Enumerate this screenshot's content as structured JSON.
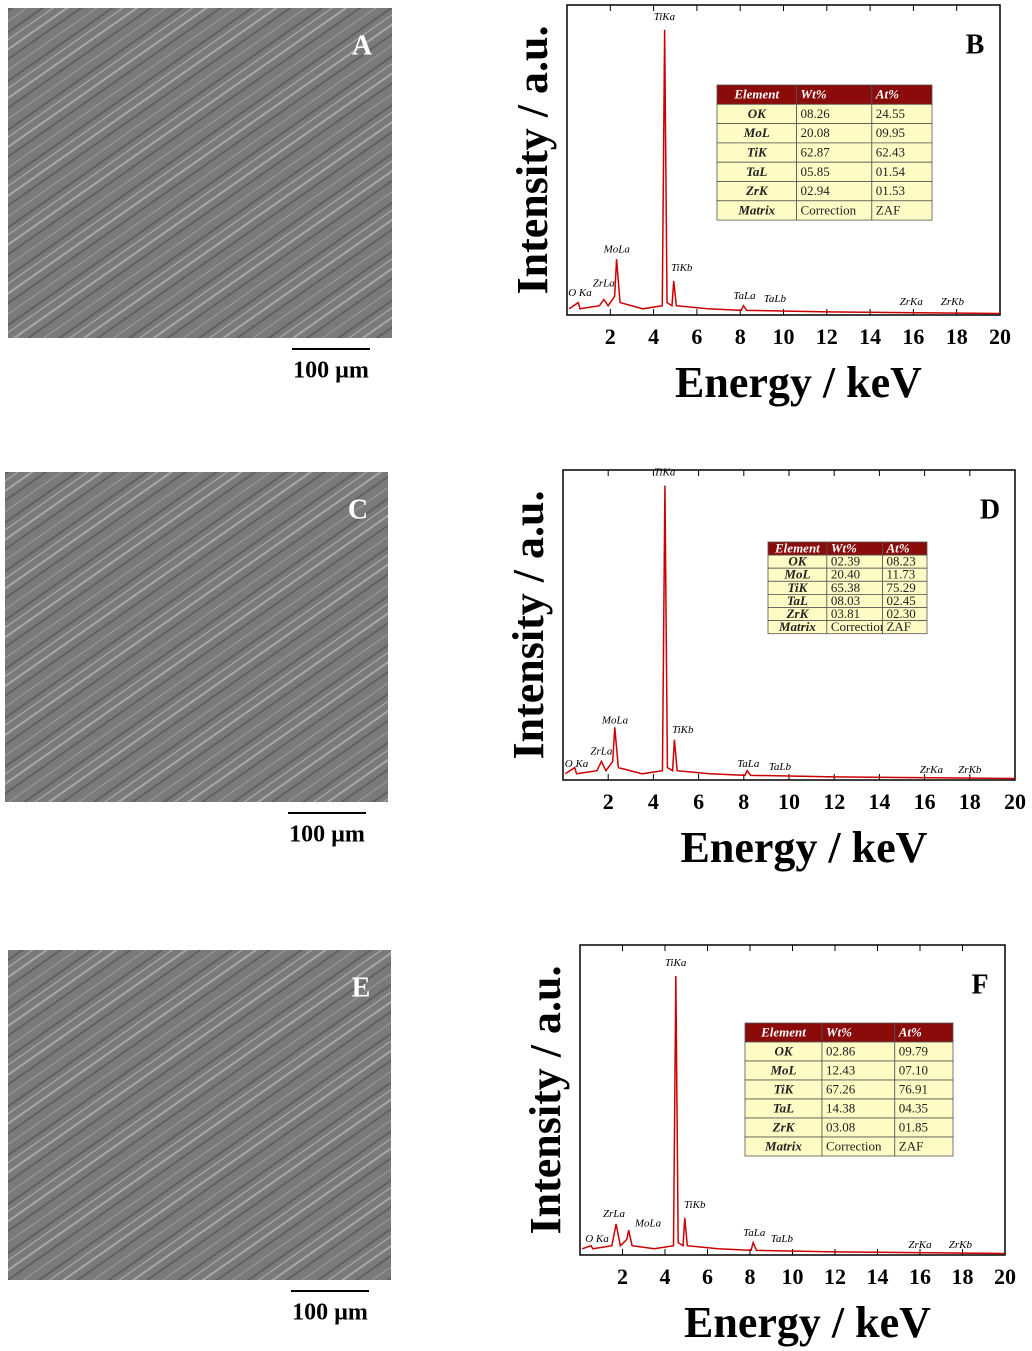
{
  "images": [
    {
      "label": "A",
      "scale_bar": "100 µm"
    },
    {
      "label": "C",
      "scale_bar": "100 µm"
    },
    {
      "label": "E",
      "scale_bar": "100 µm"
    }
  ],
  "chart_data": [
    {
      "type": "line",
      "panel": "B",
      "xlabel": "Energy / keV",
      "ylabel": "Intensity / a.u.",
      "color": "#cc0000",
      "xlim": [
        0,
        20
      ],
      "xticks": [
        2,
        4,
        6,
        8,
        10,
        12,
        14,
        16,
        18,
        20
      ],
      "ylim": [
        0,
        100
      ],
      "x": [
        0.1,
        0.52,
        0.6,
        1.5,
        1.7,
        1.9,
        2.2,
        2.29,
        2.45,
        3.5,
        4.4,
        4.51,
        4.62,
        4.85,
        4.93,
        5.05,
        6.5,
        8.05,
        8.15,
        8.3,
        12,
        20
      ],
      "values": [
        2,
        4,
        2,
        3,
        5,
        3,
        6,
        18,
        4,
        2,
        3,
        92,
        4,
        3,
        11,
        3,
        2,
        1.5,
        3,
        1.5,
        1,
        0.5
      ],
      "annotations": [
        {
          "text": "O Ka",
          "x": 0.6,
          "y": 7
        },
        {
          "text": "ZrLa",
          "x": 1.7,
          "y": 10
        },
        {
          "text": "MoLa",
          "x": 2.3,
          "y": 21
        },
        {
          "text": "TiKa",
          "x": 4.5,
          "y": 96
        },
        {
          "text": "TiKb",
          "x": 5.3,
          "y": 15
        },
        {
          "text": "TaLa",
          "x": 8.2,
          "y": 6
        },
        {
          "text": "TaLb",
          "x": 9.6,
          "y": 5
        },
        {
          "text": "ZrKa",
          "x": 15.9,
          "y": 4
        },
        {
          "text": "ZrKb",
          "x": 17.8,
          "y": 4
        }
      ],
      "table": {
        "header": [
          "Element",
          "Wt%",
          "At%"
        ],
        "rows": [
          [
            "OK",
            "08.26",
            "24.55"
          ],
          [
            "MoL",
            "20.08",
            "09.95"
          ],
          [
            "TiK",
            "62.87",
            "62.43"
          ],
          [
            "TaL",
            "05.85",
            "01.54"
          ],
          [
            "ZrK",
            "02.94",
            "01.53"
          ],
          [
            "Matrix",
            "Correction",
            "ZAF"
          ]
        ]
      }
    },
    {
      "type": "line",
      "panel": "D",
      "xlabel": "Energy / keV",
      "ylabel": "Intensity / a.u.",
      "color": "#cc0000",
      "xlim": [
        0,
        20
      ],
      "xticks": [
        2,
        4,
        6,
        8,
        10,
        12,
        14,
        16,
        18,
        20
      ],
      "ylim": [
        0,
        100
      ],
      "x": [
        0.1,
        0.52,
        0.6,
        1.5,
        1.7,
        1.9,
        2.2,
        2.29,
        2.45,
        3.5,
        4.4,
        4.51,
        4.62,
        4.85,
        4.93,
        5.05,
        6.5,
        8.05,
        8.15,
        8.3,
        12,
        20
      ],
      "values": [
        2,
        4,
        2,
        3,
        6,
        3,
        6,
        17,
        4,
        2,
        3,
        95,
        4,
        3,
        13,
        3,
        2,
        1.5,
        3,
        1.5,
        1,
        0.5
      ],
      "annotations": [
        {
          "text": "O Ka",
          "x": 0.6,
          "y": 5
        },
        {
          "text": "ZrLa",
          "x": 1.7,
          "y": 9
        },
        {
          "text": "MoLa",
          "x": 2.3,
          "y": 19
        },
        {
          "text": "TiKa",
          "x": 4.5,
          "y": 99
        },
        {
          "text": "TiKb",
          "x": 5.3,
          "y": 16
        },
        {
          "text": "TaLa",
          "x": 8.2,
          "y": 5
        },
        {
          "text": "TaLb",
          "x": 9.6,
          "y": 4
        },
        {
          "text": "ZrKa",
          "x": 16.3,
          "y": 3
        },
        {
          "text": "ZrKb",
          "x": 18.0,
          "y": 3
        }
      ],
      "table": {
        "header": [
          "Element",
          "Wt%",
          "At%"
        ],
        "rows": [
          [
            "OK",
            "02.39",
            "08.23"
          ],
          [
            "MoL",
            "20.40",
            "11.73"
          ],
          [
            "TiK",
            "65.38",
            "75.29"
          ],
          [
            "TaL",
            "08.03",
            "02.45"
          ],
          [
            "ZrK",
            "03.81",
            "02.30"
          ],
          [
            "Matrix",
            "Correction",
            "ZAF"
          ]
        ]
      }
    },
    {
      "type": "line",
      "panel": "F",
      "xlabel": "Energy / keV",
      "ylabel": "Intensity / a.u.",
      "color": "#cc0000",
      "xlim": [
        0,
        20
      ],
      "xticks": [
        2,
        4,
        6,
        8,
        10,
        12,
        14,
        16,
        18,
        20
      ],
      "ylim": [
        0,
        100
      ],
      "x": [
        0.1,
        0.52,
        0.6,
        1.5,
        1.7,
        1.9,
        2.2,
        2.29,
        2.45,
        3.5,
        4.4,
        4.51,
        4.62,
        4.85,
        4.93,
        5.05,
        6.5,
        8.05,
        8.15,
        8.3,
        12,
        20
      ],
      "values": [
        2,
        3,
        2,
        3,
        10,
        3,
        5,
        8,
        3,
        2,
        3,
        90,
        4,
        3,
        12,
        3,
        2,
        1.5,
        4,
        1.5,
        1,
        0.5
      ],
      "annotations": [
        {
          "text": "O Ka",
          "x": 0.8,
          "y": 5
        },
        {
          "text": "ZrLa",
          "x": 1.6,
          "y": 13
        },
        {
          "text": "MoLa",
          "x": 3.2,
          "y": 10
        },
        {
          "text": "TiKa",
          "x": 4.5,
          "y": 94
        },
        {
          "text": "TiKb",
          "x": 5.4,
          "y": 16
        },
        {
          "text": "TaLa",
          "x": 8.2,
          "y": 7
        },
        {
          "text": "TaLb",
          "x": 9.5,
          "y": 5
        },
        {
          "text": "ZrKa",
          "x": 16.0,
          "y": 3
        },
        {
          "text": "ZrKb",
          "x": 17.9,
          "y": 3
        }
      ],
      "table": {
        "header": [
          "Element",
          "Wt%",
          "At%"
        ],
        "rows": [
          [
            "OK",
            "02.86",
            "09.79"
          ],
          [
            "MoL",
            "12.43",
            "07.10"
          ],
          [
            "TiK",
            "67.26",
            "76.91"
          ],
          [
            "TaL",
            "14.38",
            "04.35"
          ],
          [
            "ZrK",
            "03.08",
            "01.85"
          ],
          [
            "Matrix",
            "Correction",
            "ZAF"
          ]
        ]
      }
    }
  ]
}
